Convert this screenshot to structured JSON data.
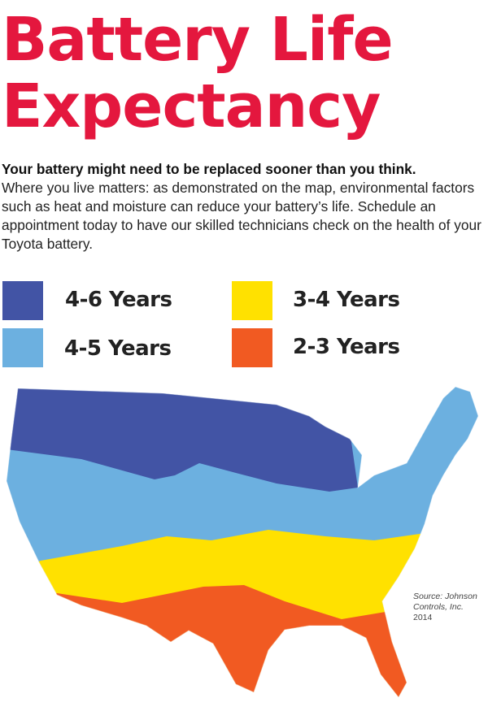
{
  "title": [
    "Battery Life",
    "Expectancy"
  ],
  "intro": {
    "lead": "Your battery might need to be replaced sooner than you think.",
    "body": "Where you live matters: as demonstrated on the map, environmental factors such as heat and moisture can reduce your battery’s life. Schedule an appointment today to have our skilled technicians check on the health of your Toyota battery."
  },
  "legend": [
    {
      "label": "4-6 Years",
      "color": "#4254a5"
    },
    {
      "label": "4-5 Years",
      "color": "#6cb0e0"
    },
    {
      "label": "3-4 Years",
      "color": "#ffe100"
    },
    {
      "label": "2-3 Years",
      "color": "#f15a22"
    }
  ],
  "source": {
    "line1": "Source: Johnson",
    "line2": "Controls, Inc.",
    "line3": "2014"
  }
}
